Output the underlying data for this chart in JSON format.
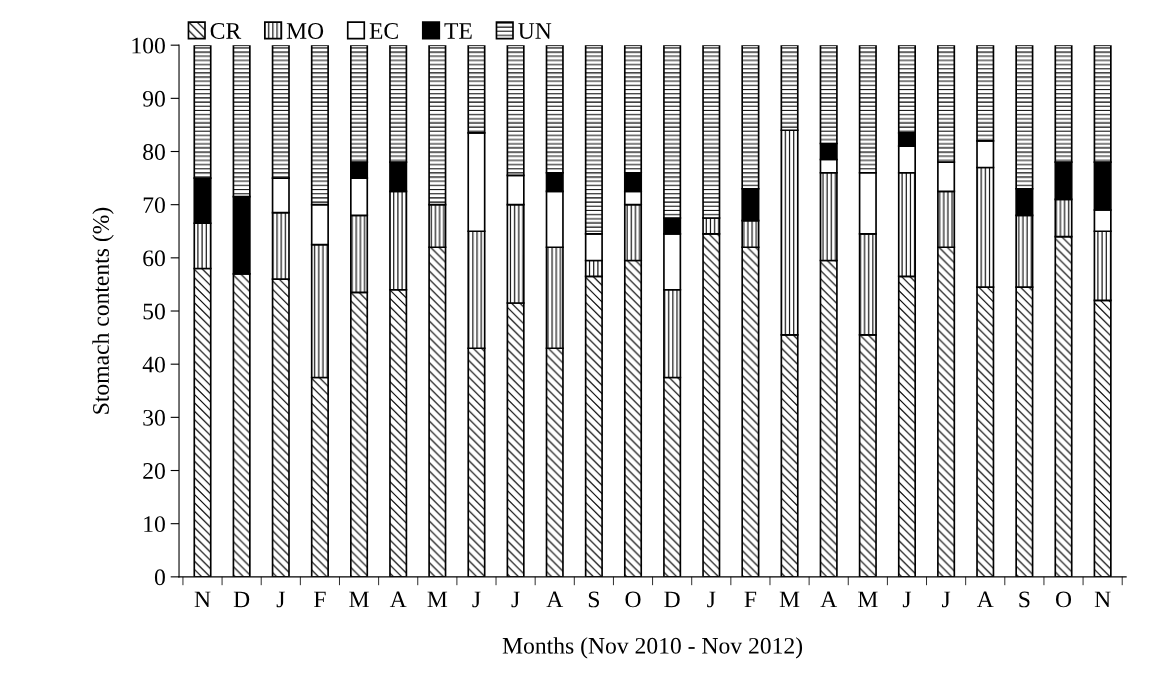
{
  "chart_data": {
    "type": "bar",
    "stacked": true,
    "xlabel": "Months (Nov 2010 - Nov 2012)",
    "ylabel": "Stomach contents (%)",
    "categories": [
      "N",
      "D",
      "J",
      "F",
      "M",
      "A",
      "M",
      "J",
      "J",
      "A",
      "S",
      "O",
      "D",
      "J",
      "F",
      "M",
      "A",
      "M",
      "J",
      "J",
      "A",
      "S",
      "O",
      "N"
    ],
    "series": [
      {
        "name": "CR",
        "color": "#000000",
        "values": [
          58,
          57,
          56,
          37.5,
          53.5,
          54,
          62,
          43,
          51.5,
          43,
          56.5,
          59.5,
          37.5,
          64.5,
          62,
          45.5,
          59.5,
          45.5,
          56.5,
          62,
          54.5,
          54.5,
          64,
          52
        ]
      },
      {
        "name": "MO",
        "color": "#000000",
        "values": [
          8.5,
          0,
          12.5,
          25,
          14.5,
          18.5,
          8,
          22,
          18.5,
          19,
          3,
          10.5,
          16.5,
          3,
          5,
          38.5,
          16.5,
          19,
          19.5,
          10.5,
          22.5,
          13.5,
          7,
          13
        ]
      },
      {
        "name": "EC",
        "color": "#ffffff",
        "values": [
          0,
          0,
          6.5,
          7.5,
          7,
          0,
          0,
          18.5,
          5.5,
          10.5,
          5,
          2.5,
          10.5,
          0,
          0,
          0,
          2.5,
          11.5,
          5,
          5.5,
          5,
          0,
          0,
          4
        ]
      },
      {
        "name": "TE",
        "color": "#000000",
        "values": [
          8.5,
          14.5,
          0,
          0,
          3,
          5.5,
          0,
          0,
          0,
          3.5,
          0,
          3.5,
          3,
          0,
          6,
          0,
          3,
          0,
          2.5,
          0,
          0,
          5,
          7,
          9
        ]
      },
      {
        "name": "UN",
        "color": "#000000",
        "values": [
          25,
          28.5,
          25,
          30,
          22,
          22,
          30,
          16.5,
          24.5,
          24,
          35.5,
          24,
          32.5,
          32.5,
          27,
          16,
          18.5,
          24,
          16.5,
          22,
          18,
          27,
          22,
          22
        ]
      }
    ],
    "ylim": [
      0,
      100
    ],
    "yticks": [
      0,
      10,
      20,
      30,
      40,
      50,
      60,
      70,
      80,
      90,
      100
    ],
    "grid": false,
    "legend": "top left"
  }
}
